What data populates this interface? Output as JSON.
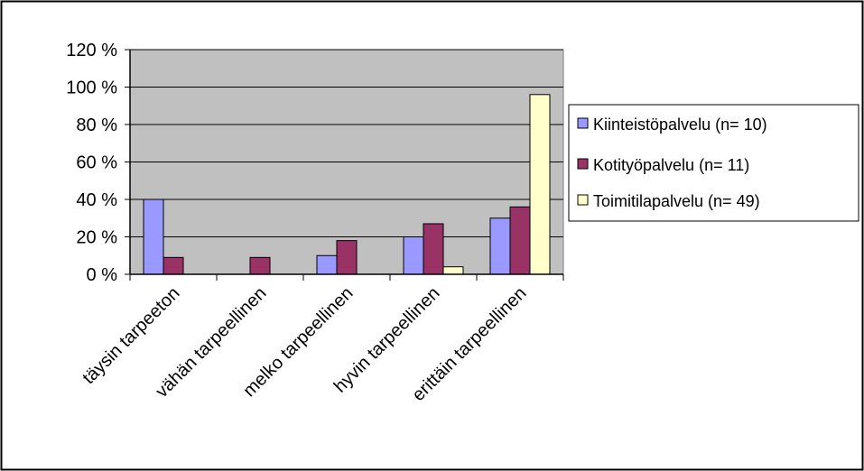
{
  "chart_data": {
    "type": "bar",
    "categories": [
      "täysin tarpeeton",
      "vähän tarpeellinen",
      "melko tarpeellinen",
      "hyvin tarpeellinen",
      "erittäin tarpeellinen"
    ],
    "y_tick_labels": [
      "0 %",
      "20 %",
      "40 %",
      "60 %",
      "80 %",
      "100 %",
      "120 %"
    ],
    "ylim": [
      0,
      120
    ],
    "grid": true,
    "legend_position": "right",
    "series": [
      {
        "name": "Kiinteistöpalvelu (n= 10)",
        "color": "#9999ff",
        "values": [
          40,
          0,
          10,
          20,
          30
        ]
      },
      {
        "name": "Kotityöpalvelu (n= 11)",
        "color": "#993366",
        "values": [
          9,
          9,
          18,
          27,
          36
        ]
      },
      {
        "name": "Toimitilapalvelu (n= 49)",
        "color": "#ffffcc",
        "values": [
          0,
          0,
          0,
          4,
          96
        ]
      }
    ],
    "plot_background": "#c0c0c0"
  }
}
